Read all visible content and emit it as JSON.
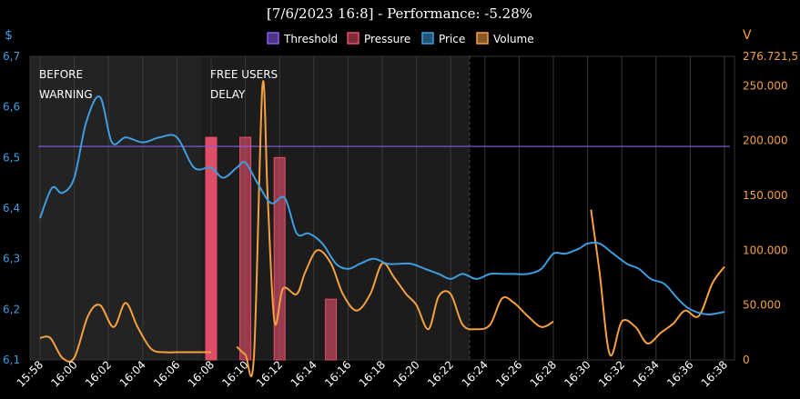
{
  "chart_data": {
    "type": "line",
    "title": "[7/6/2023 16:8] - Performance: -5.28%",
    "y_left_unit": "$",
    "y_right_unit": "V",
    "y_left_ticks": [
      "6,1",
      "6,2",
      "6,3",
      "6,4",
      "6,5",
      "6,6",
      "6,7"
    ],
    "y_left_range": [
      6.1,
      6.7
    ],
    "y_right_ticks": [
      "0",
      "50.000",
      "100.000",
      "150.000",
      "200.000",
      "250.000",
      "276.721,5"
    ],
    "y_right_range": [
      0,
      276721.5
    ],
    "x_ticks": [
      "15:58",
      "16:00",
      "16:02",
      "16:04",
      "16:06",
      "16:08",
      "16:10",
      "16:12",
      "16:14",
      "16:16",
      "16:18",
      "16:20",
      "16:22",
      "16:24",
      "16:26",
      "16:28",
      "16:30",
      "16:32",
      "16:34",
      "16:36",
      "16:38"
    ],
    "x_range_minutes": [
      0,
      41
    ],
    "legend": [
      {
        "name": "Threshold",
        "color": "#8a5cf0"
      },
      {
        "name": "Pressure",
        "color": "#e8506a"
      },
      {
        "name": "Price",
        "color": "#3d9de0"
      },
      {
        "name": "Volume",
        "color": "#f5a040"
      }
    ],
    "annotations": [
      {
        "lines": [
          "BEFORE",
          "WARNING"
        ],
        "region_start": "15:58",
        "region_end": "16:08"
      },
      {
        "lines": [
          "FREE USERS",
          "DELAY"
        ],
        "region_start": "16:08",
        "region_end": "16:24"
      }
    ],
    "threshold": 6.522,
    "pressure": [
      {
        "x": "16:08",
        "value": 6.54
      },
      {
        "x": "16:10",
        "value": 6.54
      },
      {
        "x": "16:12",
        "value": 6.5
      },
      {
        "x": "16:15",
        "value": 6.22
      }
    ],
    "series": [
      {
        "name": "Price",
        "x": [
          0,
          0.7,
          1.3,
          2,
          2.7,
          3.5,
          4.2,
          5,
          6,
          7,
          8,
          9,
          10,
          10.7,
          11.5,
          12,
          12.7,
          13.5,
          14.3,
          15,
          15.7,
          16.5,
          17.3,
          18,
          18.7,
          19.5,
          20.3,
          21,
          21.7,
          22.5,
          23.3,
          24,
          24.7,
          25.5,
          26.3,
          27,
          27.7,
          28.5,
          29.3,
          30,
          30.7,
          31.5,
          32,
          32.7,
          33.5,
          34.3,
          35,
          35.7,
          36.5,
          37.3,
          38,
          39,
          40
        ],
        "y": [
          6.38,
          6.44,
          6.43,
          6.46,
          6.57,
          6.62,
          6.53,
          6.54,
          6.53,
          6.54,
          6.54,
          6.48,
          6.48,
          6.46,
          6.48,
          6.49,
          6.45,
          6.41,
          6.42,
          6.35,
          6.35,
          6.33,
          6.29,
          6.28,
          6.29,
          6.3,
          6.29,
          6.29,
          6.29,
          6.28,
          6.27,
          6.26,
          6.27,
          6.26,
          6.27,
          6.27,
          6.27,
          6.27,
          6.28,
          6.31,
          6.31,
          6.32,
          6.33,
          6.33,
          6.31,
          6.29,
          6.28,
          6.26,
          6.25,
          6.22,
          6.2,
          6.19,
          6.195
        ]
      },
      {
        "name": "Volume",
        "segments": [
          {
            "x": [
              0,
              0.6,
              1.3,
              2,
              2.8,
              3.5,
              4.3,
              5,
              5.7,
              6.5,
              7.3,
              8,
              8.7,
              9.3,
              10
            ],
            "y": [
              20000,
              20000,
              2000,
              2000,
              40000,
              50000,
              30000,
              52000,
              30000,
              10000,
              7000,
              7000,
              7000,
              7000,
              7000
            ]
          },
          {
            "x": [
              11.5,
              12,
              12.5,
              13,
              13.3,
              13.7,
              14.2,
              15,
              15.5,
              16.2,
              17,
              17.7,
              18.5,
              19.3,
              20,
              20.7,
              21.4,
              22,
              22.7,
              23.3,
              24,
              24.7,
              25.5,
              26.3,
              27,
              27.7,
              28.5,
              29.3,
              30
            ],
            "y": [
              12000,
              5000,
              3000,
              250000,
              150000,
              35000,
              65000,
              60000,
              80000,
              100000,
              88000,
              60000,
              45000,
              60000,
              88000,
              75000,
              60000,
              50000,
              28000,
              58000,
              60000,
              32000,
              28000,
              32000,
              56000,
              52000,
              40000,
              30000,
              35000
            ]
          },
          {
            "x": [
              32.2,
              32.7,
              33.3,
              34,
              34.8,
              35.5,
              36.3,
              37,
              37.7,
              38.5,
              39.3,
              40
            ],
            "y": [
              137000,
              80000,
              5000,
              35000,
              30000,
              15000,
              25000,
              33000,
              45000,
              40000,
              70000,
              85000
            ]
          }
        ]
      }
    ]
  }
}
